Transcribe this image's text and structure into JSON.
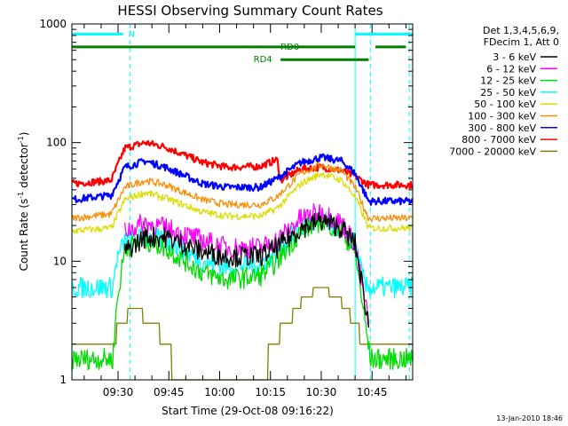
{
  "chart_data": {
    "type": "line",
    "title": "HESSI Observing Summary Count Rates",
    "xlabel": "Start Time (29-Oct-08 09:16:22)",
    "ylabel_main": "Count Rate (s",
    "ylabel_sup1": "-1",
    "ylabel_mid": " detector",
    "ylabel_sup2": "-1",
    "ylabel_end": ")",
    "x_ticks": [
      "09:30",
      "09:45",
      "10:00",
      "10:15",
      "10:30",
      "10:45"
    ],
    "x_tick_minutes": [
      30,
      45,
      60,
      75,
      90,
      105
    ],
    "xlim_minutes": [
      16.37,
      117.0
    ],
    "y_scale": "log",
    "ylim": [
      1,
      1000
    ],
    "y_ticks": [
      "1",
      "10",
      "100",
      "1000"
    ],
    "legend_header": [
      "Det 1,3,4,5,6,9,",
      "FDecim 1, Att 0"
    ],
    "series": [
      {
        "name": "3 - 6 keV",
        "color": "#000000",
        "points": [
          [
            32,
            12
          ],
          [
            38,
            16
          ],
          [
            44,
            16
          ],
          [
            55,
            12
          ],
          [
            62,
            11
          ],
          [
            72,
            11
          ],
          [
            77,
            13
          ],
          [
            84,
            19
          ],
          [
            90,
            22
          ],
          [
            96,
            19
          ],
          [
            100,
            14
          ],
          [
            104,
            3
          ]
        ]
      },
      {
        "name": "6 - 12 keV",
        "color": "#ff00ff",
        "points": [
          [
            32,
            18
          ],
          [
            38,
            21
          ],
          [
            44,
            19
          ],
          [
            55,
            15
          ],
          [
            62,
            13
          ],
          [
            72,
            13
          ],
          [
            77,
            15
          ],
          [
            84,
            23
          ],
          [
            90,
            26
          ],
          [
            96,
            21
          ],
          [
            100,
            14
          ],
          [
            104,
            3
          ]
        ]
      },
      {
        "name": "12 - 25 keV",
        "color": "#00dd00",
        "points": [
          [
            16.4,
            1.5
          ],
          [
            28.5,
            1.5
          ],
          [
            29.5,
            4
          ],
          [
            32,
            13
          ],
          [
            38,
            15
          ],
          [
            44,
            13
          ],
          [
            55,
            8
          ],
          [
            62,
            7
          ],
          [
            72,
            7.5
          ],
          [
            77,
            10
          ],
          [
            84,
            18
          ],
          [
            90,
            22
          ],
          [
            96,
            18
          ],
          [
            100,
            12
          ],
          [
            103,
            3
          ],
          [
            104.5,
            1.5
          ],
          [
            117,
            1.5
          ]
        ]
      },
      {
        "name": "25 - 50 keV",
        "color": "#00ffff",
        "points": [
          [
            16.4,
            6
          ],
          [
            28.5,
            6
          ],
          [
            29.5,
            10
          ],
          [
            32,
            15
          ],
          [
            38,
            16
          ],
          [
            44,
            15
          ],
          [
            55,
            10
          ],
          [
            62,
            9
          ],
          [
            72,
            9.5
          ],
          [
            77,
            12
          ],
          [
            84,
            19
          ],
          [
            90,
            22
          ],
          [
            96,
            19
          ],
          [
            100,
            14
          ],
          [
            103,
            6
          ],
          [
            109,
            6
          ],
          [
            117,
            6
          ]
        ]
      },
      {
        "name": "50 - 100 keV",
        "color": "#dddd00",
        "points": [
          [
            16.4,
            18
          ],
          [
            28,
            19
          ],
          [
            32,
            33
          ],
          [
            38,
            38
          ],
          [
            44,
            34
          ],
          [
            55,
            26
          ],
          [
            62,
            24
          ],
          [
            72,
            24
          ],
          [
            77,
            28
          ],
          [
            84,
            45
          ],
          [
            90,
            55
          ],
          [
            96,
            48
          ],
          [
            100,
            35
          ],
          [
            104,
            19
          ],
          [
            117,
            19
          ]
        ]
      },
      {
        "name": "100 - 300 keV",
        "color": "#ff8c00",
        "points": [
          [
            16.4,
            23
          ],
          [
            28,
            25
          ],
          [
            32,
            42
          ],
          [
            38,
            48
          ],
          [
            44,
            44
          ],
          [
            55,
            33
          ],
          [
            62,
            30
          ],
          [
            72,
            30
          ],
          [
            77,
            35
          ],
          [
            84,
            55
          ],
          [
            90,
            65
          ],
          [
            96,
            58
          ],
          [
            100,
            42
          ],
          [
            104,
            23
          ],
          [
            117,
            23
          ]
        ]
      },
      {
        "name": "300 - 800 keV",
        "color": "#0000ff",
        "points": [
          [
            16.4,
            33
          ],
          [
            28,
            36
          ],
          [
            32,
            62
          ],
          [
            38,
            70
          ],
          [
            44,
            62
          ],
          [
            55,
            45
          ],
          [
            62,
            42
          ],
          [
            72,
            42
          ],
          [
            77,
            50
          ],
          [
            84,
            68
          ],
          [
            90,
            75
          ],
          [
            96,
            70
          ],
          [
            100,
            55
          ],
          [
            104,
            32
          ],
          [
            117,
            32
          ]
        ]
      },
      {
        "name": "800 - 7000 keV",
        "color": "#ff0000",
        "points": [
          [
            16.4,
            45
          ],
          [
            28,
            48
          ],
          [
            32,
            90
          ],
          [
            38,
            100
          ],
          [
            44,
            92
          ],
          [
            55,
            68
          ],
          [
            62,
            62
          ],
          [
            72,
            63
          ],
          [
            77,
            72
          ],
          [
            78,
            48
          ],
          [
            84,
            60
          ],
          [
            90,
            62
          ],
          [
            96,
            58
          ],
          [
            100,
            52
          ],
          [
            104,
            44
          ],
          [
            117,
            44
          ]
        ]
      },
      {
        "name": "7000 - 20000 keV",
        "color": "#808000",
        "points": [
          [
            16.4,
            1.7
          ],
          [
            28.5,
            1.7
          ],
          [
            30,
            3
          ],
          [
            35,
            4
          ],
          [
            40,
            3
          ],
          [
            45,
            2
          ],
          [
            47,
            1
          ],
          [
            73,
            1
          ],
          [
            75,
            2
          ],
          [
            80,
            3
          ],
          [
            85,
            5
          ],
          [
            90,
            6
          ],
          [
            95,
            5
          ],
          [
            100,
            3
          ],
          [
            104,
            1.7
          ],
          [
            117,
            1.7
          ]
        ]
      }
    ],
    "annotations": [
      {
        "label": "N",
        "color": "#00ffff",
        "x0": 16.4,
        "x1": 31.5,
        "y": 820,
        "label_x": 33
      },
      {
        "label": "",
        "color": "#00ffff",
        "x0": 100,
        "x1": 117,
        "y": 820
      },
      {
        "label": "RD0",
        "color": "#008000",
        "x0": 16.4,
        "x1": 100,
        "y": 640,
        "label_x": 78
      },
      {
        "label": "",
        "color": "#008000",
        "x0": 106,
        "x1": 115,
        "y": 640
      },
      {
        "label": "RD4",
        "color": "#008000",
        "x0": 78,
        "x1": 104,
        "y": 500,
        "label_x": 70
      }
    ],
    "vlines": [
      {
        "x": 16.4,
        "color": "#00ffff",
        "dashed": false
      },
      {
        "x": 33.5,
        "color": "#00ffff",
        "dashed": true
      },
      {
        "x": 100,
        "color": "#00ffff",
        "dashed": false
      },
      {
        "x": 104.5,
        "color": "#00ffff",
        "dashed": true
      },
      {
        "x": 116,
        "color": "#00ffff",
        "dashed": true
      }
    ],
    "footer": "13-Jan-2010 18:46"
  }
}
